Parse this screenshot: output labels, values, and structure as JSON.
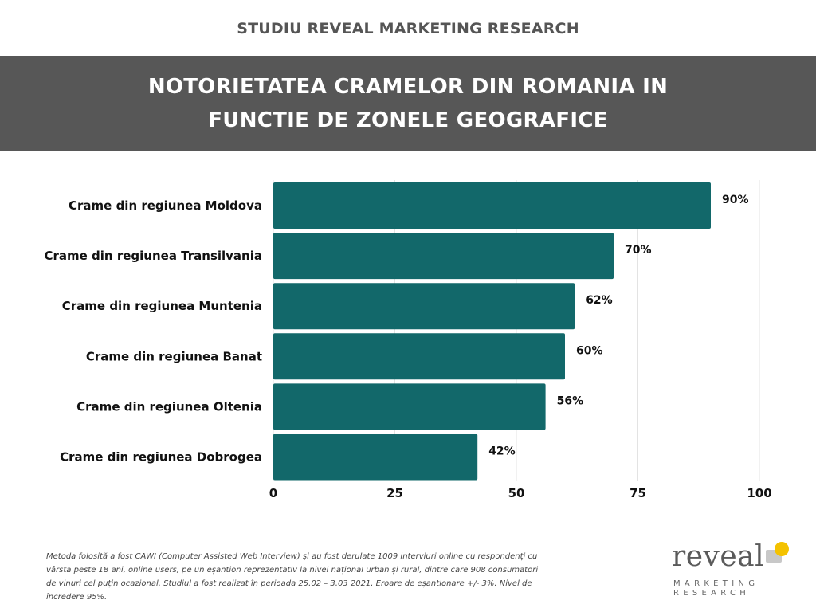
{
  "header": {
    "top_title": "STUDIU REVEAL MARKETING RESEARCH",
    "banner_line1": "NOTORIETATEA CRAMELOR DIN ROMANIA IN",
    "banner_line2": "FUNCTIE DE ZONELE GEOGRAFICE",
    "banner_color": "#575757"
  },
  "chart_data": {
    "type": "bar",
    "orientation": "horizontal",
    "title": "NOTORIETATEA CRAMELOR DIN ROMANIA IN FUNCTIE DE ZONELE GEOGRAFICE",
    "categories": [
      "Crame din regiunea Moldova",
      "Crame din regiunea Transilvania",
      "Crame din regiunea Muntenia",
      "Crame din regiunea Banat",
      "Crame din regiunea Oltenia",
      "Crame din regiunea Dobrogea"
    ],
    "values": [
      90,
      70,
      62,
      60,
      56,
      42
    ],
    "value_labels": [
      "90%",
      "70%",
      "62%",
      "60%",
      "56%",
      "42%"
    ],
    "xlim": [
      0,
      100
    ],
    "xticks": [
      0,
      25,
      50,
      75,
      100
    ],
    "grid": true,
    "bar_color": "#12686a"
  },
  "footnote": "Metoda folosită a fost CAWI (Computer Assisted Web Interview) și au fost derulate 1009 interviuri online cu respondenți cu vârsta peste 18 ani, online users, pe un eșantion reprezentativ la nivel național urban și rural, dintre care 908 consumatori de vinuri cel puțin ocazional. Studiul a fost realizat în perioada 25.02 – 3.03 2021. Eroare de eșantionare +/- 3%. Nivel de încredere 95%.",
  "logo": {
    "word": "reveal",
    "sub1": "MARKETING",
    "sub2": "RESEARCH",
    "accent_yellow": "#f4c200",
    "accent_grey": "#c8c8c8"
  }
}
